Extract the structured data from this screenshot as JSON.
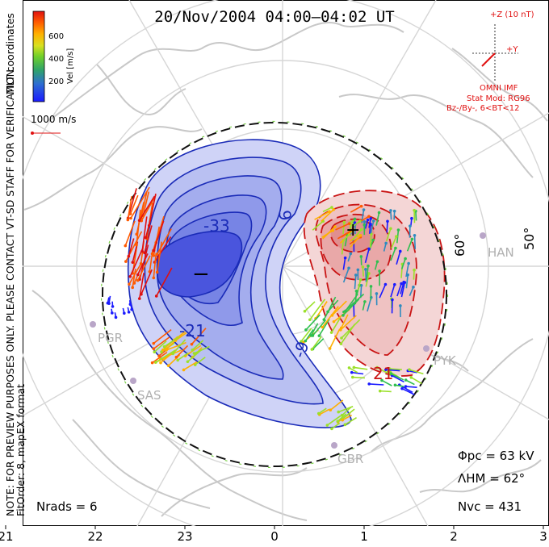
{
  "title": "20/Nov/2004 04:00–04:02 UT",
  "side_note": "NOTE: FOR PREVIEW PURPOSES ONLY. PLEASE CONTACT VT-SD STAFF FOR VERIFICATION.",
  "fit_note": "FitOrder: 8, mapEX format",
  "coord_label": "MLT coordinates",
  "colorbar": {
    "label": "Vel [m/s]",
    "ticks": [
      "200",
      "400",
      "600"
    ],
    "colors": [
      "#1a1aff",
      "#2e8bbf",
      "#2fbf4f",
      "#9be02a",
      "#ffb000",
      "#ff5a00",
      "#e01010"
    ]
  },
  "ref_vector_label": "1000 m/s",
  "imf": {
    "z_label": "+Z (10 nT)",
    "y_label": "+Y",
    "source": "OMNI IMF",
    "stat_mod": "Stat Mod: RG96",
    "bin": "Bz-/By-, 6<BT<12",
    "color": "#e01010"
  },
  "lat_labels": [
    "60°",
    "50°"
  ],
  "stations": [
    "HAN",
    "PGR",
    "SAS",
    "PYK",
    "GBR"
  ],
  "contour_labels": [
    "-33",
    "-21",
    "-9",
    "9",
    "21"
  ],
  "extrema": [
    "−",
    "+"
  ],
  "stats": {
    "phi_pc": "Φpc = 63 kV",
    "lambda_hm": "ΛHM = 62°",
    "n_vc": "Nvc = 431",
    "n_rads": "Nrads = 6"
  },
  "chart_data": {
    "type": "map",
    "title": "20/Nov/2004 04:00–04:02 UT",
    "x_axis_ticks": [
      "21",
      "22",
      "23",
      "0",
      "1",
      "2",
      "3"
    ],
    "x_axis_quantity": "MLT",
    "latitude_circles": [
      "60°",
      "50°"
    ],
    "cross_polar_cap_potential_kV": 63,
    "heppner_maynard_latitude_deg": 62,
    "n_vectors": 431,
    "n_radars": 6,
    "potential_minimum_kV": -33,
    "potential_contours_kV": [
      -33,
      -27,
      -21,
      -15,
      -9,
      -3,
      3,
      9,
      15,
      21
    ],
    "velocity_scale_ms": [
      0,
      200,
      400,
      600,
      800
    ],
    "reference_vector_ms": 1000
  },
  "colors": {
    "negative_cell": "#3b3bd9",
    "positive_cell": "#d93b3b",
    "map_lines": "#c8c8c8",
    "boundary": "#111111"
  }
}
